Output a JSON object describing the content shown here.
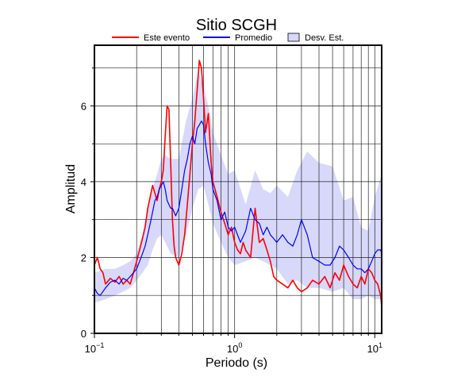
{
  "chart_data": {
    "type": "line",
    "title": "Sitio SCGH",
    "xlabel": "Periodo (s)",
    "ylabel": "Amplitud",
    "xscale": "log",
    "xlim": [
      0.1,
      11.2
    ],
    "ylim": [
      0,
      7.6
    ],
    "xticks": [
      {
        "base": "10",
        "exp": "−1"
      },
      {
        "base": "10",
        "exp": "0"
      },
      {
        "base": "10",
        "exp": "1"
      }
    ],
    "yticks": [
      "0",
      "2",
      "4",
      "6"
    ],
    "grid": true,
    "legend_position": "top",
    "legend": [
      {
        "label": "Este evento",
        "color": "#ff0000",
        "kind": "line"
      },
      {
        "label": "Promedio",
        "color": "#0000ff",
        "kind": "line"
      },
      {
        "label": "Desv. Est.",
        "color": "#d8d8fb",
        "kind": "band"
      }
    ],
    "series": [
      {
        "name": "Este evento",
        "color": "#ff0000",
        "x": [
          0.1,
          0.105,
          0.11,
          0.115,
          0.12,
          0.13,
          0.14,
          0.15,
          0.16,
          0.17,
          0.18,
          0.19,
          0.2,
          0.21,
          0.22,
          0.23,
          0.24,
          0.25,
          0.26,
          0.27,
          0.28,
          0.29,
          0.3,
          0.31,
          0.32,
          0.33,
          0.34,
          0.35,
          0.36,
          0.37,
          0.38,
          0.39,
          0.4,
          0.42,
          0.44,
          0.46,
          0.48,
          0.5,
          0.52,
          0.54,
          0.56,
          0.58,
          0.6,
          0.62,
          0.65,
          0.68,
          0.7,
          0.75,
          0.8,
          0.85,
          0.9,
          0.95,
          1.0,
          1.05,
          1.1,
          1.15,
          1.2,
          1.3,
          1.4,
          1.5,
          1.6,
          1.7,
          1.8,
          1.9,
          2.0,
          2.2,
          2.4,
          2.6,
          2.8,
          3.0,
          3.3,
          3.6,
          4.0,
          4.4,
          4.8,
          5.2,
          5.6,
          6.0,
          6.5,
          7.0,
          7.5,
          8.0,
          8.5,
          9.0,
          9.5,
          10.0,
          10.5,
          11.0,
          11.2
        ],
        "values": [
          1.8,
          2.0,
          1.7,
          1.6,
          1.3,
          1.45,
          1.35,
          1.5,
          1.3,
          1.4,
          1.3,
          1.6,
          1.9,
          2.2,
          2.5,
          2.8,
          3.3,
          3.6,
          3.9,
          3.7,
          3.5,
          3.8,
          4.0,
          4.3,
          5.2,
          6.0,
          5.9,
          4.5,
          3.0,
          2.3,
          2.0,
          1.9,
          1.8,
          2.1,
          2.6,
          3.4,
          4.2,
          5.0,
          5.6,
          6.4,
          7.2,
          7.0,
          6.2,
          5.3,
          5.8,
          4.5,
          4.0,
          3.6,
          3.2,
          2.9,
          2.6,
          2.8,
          2.4,
          2.2,
          2.1,
          2.4,
          2.2,
          2.0,
          3.3,
          2.4,
          2.5,
          2.2,
          1.9,
          1.5,
          1.4,
          1.3,
          1.2,
          1.4,
          1.2,
          1.1,
          1.2,
          1.4,
          1.3,
          1.5,
          1.2,
          1.6,
          1.4,
          1.8,
          1.5,
          1.3,
          1.2,
          1.5,
          1.3,
          1.7,
          1.6,
          1.4,
          1.3,
          1.0,
          0.7
        ]
      },
      {
        "name": "Promedio",
        "color": "#0000ff",
        "x": [
          0.1,
          0.105,
          0.11,
          0.12,
          0.13,
          0.14,
          0.15,
          0.16,
          0.17,
          0.18,
          0.19,
          0.2,
          0.21,
          0.22,
          0.23,
          0.24,
          0.25,
          0.26,
          0.27,
          0.28,
          0.29,
          0.3,
          0.31,
          0.32,
          0.33,
          0.34,
          0.35,
          0.36,
          0.38,
          0.4,
          0.42,
          0.44,
          0.46,
          0.48,
          0.5,
          0.52,
          0.54,
          0.56,
          0.58,
          0.6,
          0.62,
          0.65,
          0.68,
          0.7,
          0.75,
          0.8,
          0.85,
          0.9,
          0.95,
          1.0,
          1.1,
          1.2,
          1.3,
          1.4,
          1.5,
          1.6,
          1.7,
          1.8,
          1.9,
          2.0,
          2.2,
          2.4,
          2.6,
          2.8,
          3.0,
          3.3,
          3.6,
          4.0,
          4.4,
          4.8,
          5.2,
          5.6,
          6.0,
          6.5,
          7.0,
          7.5,
          8.0,
          8.5,
          9.0,
          9.5,
          10.0,
          10.5,
          11.0,
          11.2
        ],
        "values": [
          1.2,
          1.05,
          1.0,
          1.2,
          1.35,
          1.4,
          1.3,
          1.45,
          1.4,
          1.5,
          1.6,
          1.7,
          1.9,
          2.1,
          2.3,
          2.6,
          2.9,
          3.2,
          3.5,
          3.6,
          3.8,
          3.9,
          4.0,
          3.8,
          3.5,
          3.4,
          3.3,
          3.3,
          3.1,
          3.3,
          3.8,
          4.3,
          4.6,
          5.0,
          5.2,
          5.0,
          5.4,
          5.5,
          5.6,
          5.5,
          5.0,
          4.5,
          4.2,
          3.8,
          3.5,
          3.0,
          3.2,
          2.8,
          2.7,
          2.8,
          2.4,
          2.7,
          3.3,
          3.0,
          2.9,
          2.6,
          2.8,
          2.6,
          2.5,
          2.4,
          2.6,
          2.4,
          2.3,
          2.6,
          3.0,
          2.6,
          2.0,
          1.9,
          1.8,
          1.8,
          2.0,
          2.3,
          2.2,
          2.0,
          1.8,
          1.7,
          1.7,
          1.6,
          1.7,
          1.9,
          2.1,
          2.2,
          2.2,
          2.1
        ]
      }
    ],
    "band": {
      "name": "Desv. Est.",
      "color": "#d8d8fb",
      "x": [
        0.1,
        0.12,
        0.14,
        0.16,
        0.18,
        0.2,
        0.22,
        0.24,
        0.26,
        0.28,
        0.3,
        0.32,
        0.35,
        0.4,
        0.45,
        0.5,
        0.55,
        0.6,
        0.65,
        0.7,
        0.8,
        0.9,
        1.0,
        1.2,
        1.4,
        1.6,
        1.8,
        2.0,
        2.4,
        2.8,
        3.3,
        4.0,
        5.0,
        6.0,
        7.0,
        8.0,
        9.0,
        10.0,
        11.2
      ],
      "upper": [
        1.6,
        1.7,
        1.7,
        1.8,
        1.9,
        2.1,
        2.6,
        3.3,
        3.8,
        4.2,
        4.6,
        4.7,
        4.6,
        4.6,
        5.6,
        6.2,
        6.9,
        6.5,
        6.0,
        5.3,
        4.7,
        4.2,
        4.3,
        3.4,
        4.3,
        3.8,
        3.7,
        3.9,
        3.6,
        4.3,
        4.8,
        4.5,
        4.4,
        3.5,
        3.6,
        2.8,
        2.7,
        3.6,
        4.2
      ],
      "lower": [
        0.8,
        0.9,
        1.0,
        1.1,
        1.2,
        1.4,
        1.6,
        1.8,
        2.2,
        2.5,
        2.6,
        2.4,
        2.1,
        2.0,
        2.6,
        3.3,
        3.8,
        3.9,
        3.4,
        2.9,
        2.4,
        2.0,
        1.8,
        1.9,
        2.0,
        1.9,
        1.8,
        1.7,
        1.3,
        1.4,
        1.2,
        1.2,
        1.1,
        1.2,
        0.9,
        0.9,
        1.0,
        0.9,
        0.9
      ]
    }
  }
}
